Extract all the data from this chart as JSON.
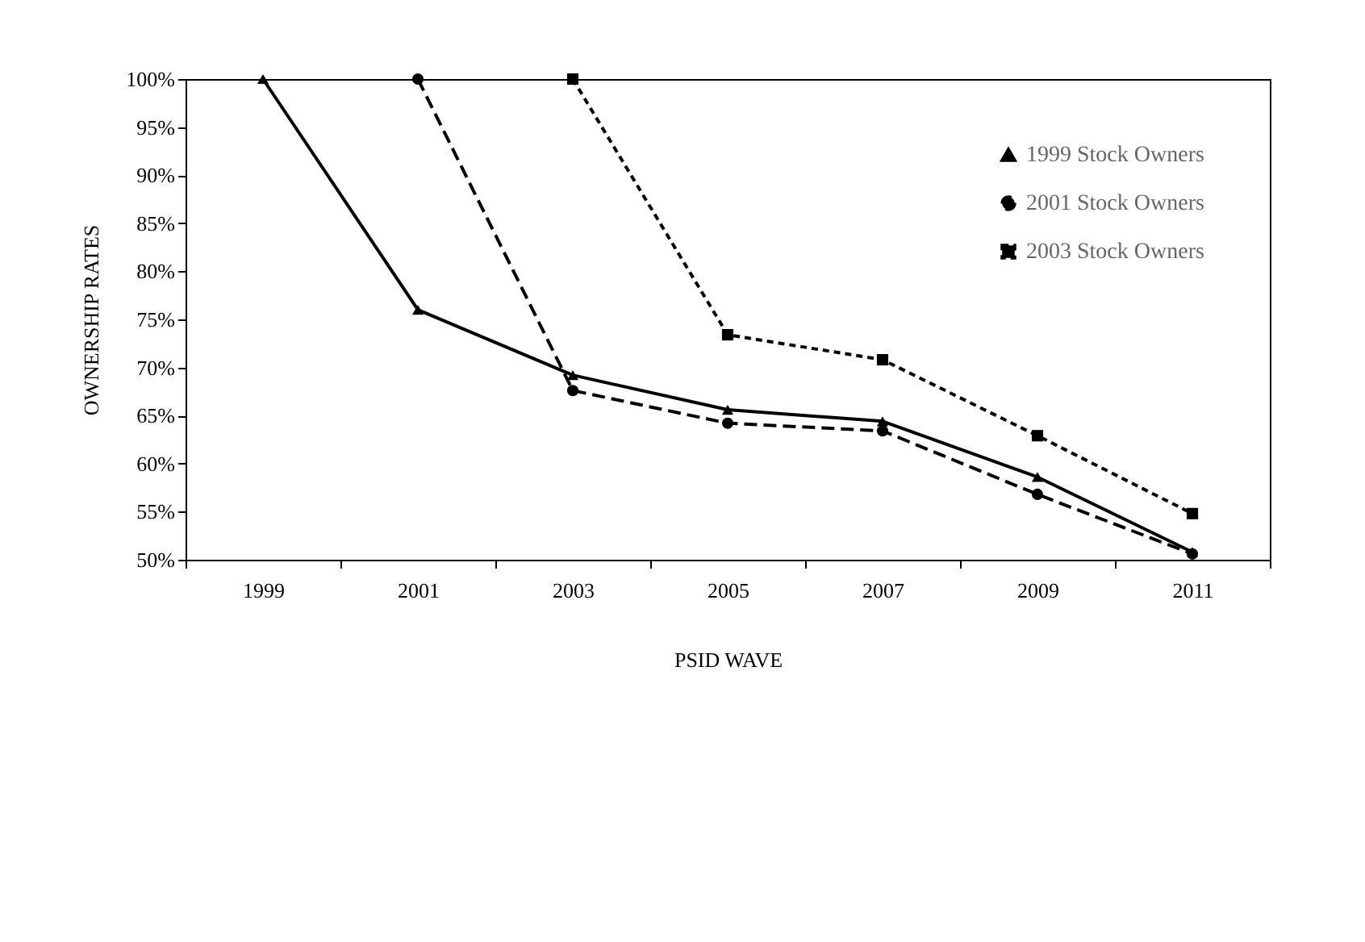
{
  "chart_data": {
    "type": "line",
    "xlabel": "PSID WAVE",
    "ylabel": "OWNERSHIP RATES",
    "categories": [
      "1999",
      "2001",
      "2003",
      "2005",
      "2007",
      "2009",
      "2011"
    ],
    "ylim": [
      50,
      100
    ],
    "yticks": [
      {
        "value": 50,
        "label": "50%"
      },
      {
        "value": 55,
        "label": "55%"
      },
      {
        "value": 60,
        "label": "60%"
      },
      {
        "value": 65,
        "label": "65%"
      },
      {
        "value": 70,
        "label": "70%"
      },
      {
        "value": 75,
        "label": "75%"
      },
      {
        "value": 80,
        "label": "80%"
      },
      {
        "value": 85,
        "label": "85%"
      },
      {
        "value": 90,
        "label": "90%"
      },
      {
        "value": 95,
        "label": "95%"
      },
      {
        "value": 100,
        "label": "100%"
      }
    ],
    "legend": "top right",
    "series": [
      {
        "name": "1999 Stock Owners",
        "color": "#000000",
        "marker": "triangle",
        "line_style": "solid",
        "values": [
          100,
          76,
          69.2,
          65.6,
          64.4,
          58.6,
          50.8
        ]
      },
      {
        "name": "2001 Stock Owners",
        "color": "#000000",
        "marker": "circle",
        "line_style": "dashed",
        "values": [
          null,
          100,
          67.6,
          64.2,
          63.4,
          56.8,
          50.6
        ]
      },
      {
        "name": "2003 Stock Owners",
        "color": "#000000",
        "marker": "square",
        "line_style": "dotted",
        "values": [
          null,
          null,
          100,
          73.4,
          70.8,
          62.9,
          54.8
        ]
      }
    ]
  }
}
